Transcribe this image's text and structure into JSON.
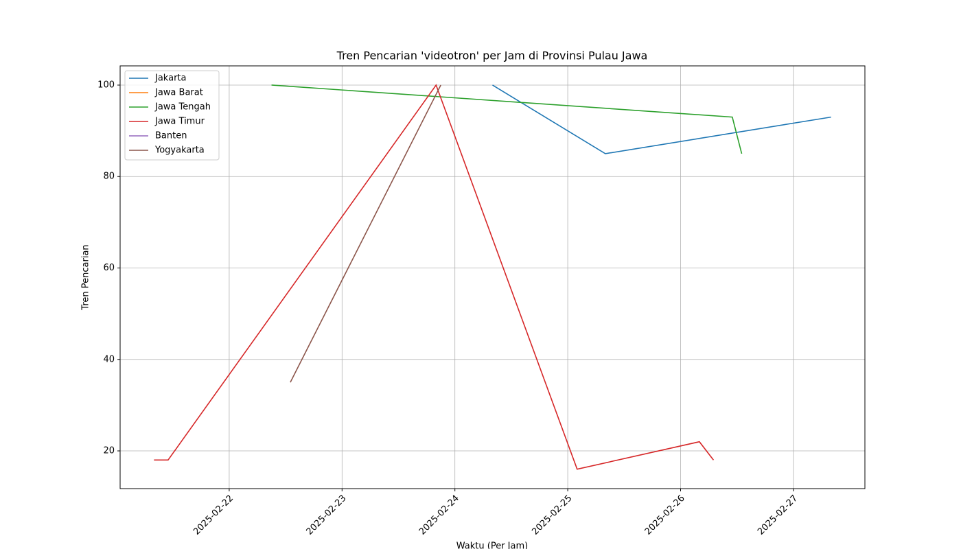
{
  "chart_data": {
    "type": "line",
    "title": "Tren Pencarian 'videotron' per Jam di Provinsi Pulau Jawa",
    "x_label": "Waktu (Per Jam)",
    "y_label": "Tren Pencarian",
    "xlim": [
      "2025-02-21T00:48",
      "2025-02-27T15:12"
    ],
    "ylim": [
      11.75,
      104.2
    ],
    "xticks": [
      "2025-02-22",
      "2025-02-23",
      "2025-02-24",
      "2025-02-25",
      "2025-02-26",
      "2025-02-27"
    ],
    "yticks": [
      20,
      40,
      60,
      80,
      100
    ],
    "grid": true,
    "legend": "upper left",
    "series": [
      {
        "name": "Jakarta",
        "color": "#1f77b4",
        "x": [
          "2025-02-24T08:00",
          "2025-02-25T08:00",
          "2025-02-27T08:00"
        ],
        "values": [
          100,
          85,
          93
        ]
      },
      {
        "name": "Jawa Barat",
        "color": "#ff7f0e",
        "x": [],
        "values": []
      },
      {
        "name": "Jawa Tengah",
        "color": "#2ca02c",
        "x": [
          "2025-02-22T09:00",
          "2025-02-26T11:00",
          "2025-02-26T13:00"
        ],
        "values": [
          100,
          93,
          85
        ]
      },
      {
        "name": "Jawa Timur",
        "color": "#d62728",
        "x": [
          "2025-02-21T08:00",
          "2025-02-21T11:00",
          "2025-02-23T20:00",
          "2025-02-25T02:00",
          "2025-02-26T04:00",
          "2025-02-26T07:00"
        ],
        "values": [
          18,
          18,
          100,
          16,
          22,
          18
        ]
      },
      {
        "name": "Banten",
        "color": "#9467bd",
        "x": [],
        "values": []
      },
      {
        "name": "Yogyakarta",
        "color": "#8c564b",
        "x": [
          "2025-02-22T13:00",
          "2025-02-23T21:00"
        ],
        "values": [
          35,
          100
        ]
      }
    ]
  }
}
